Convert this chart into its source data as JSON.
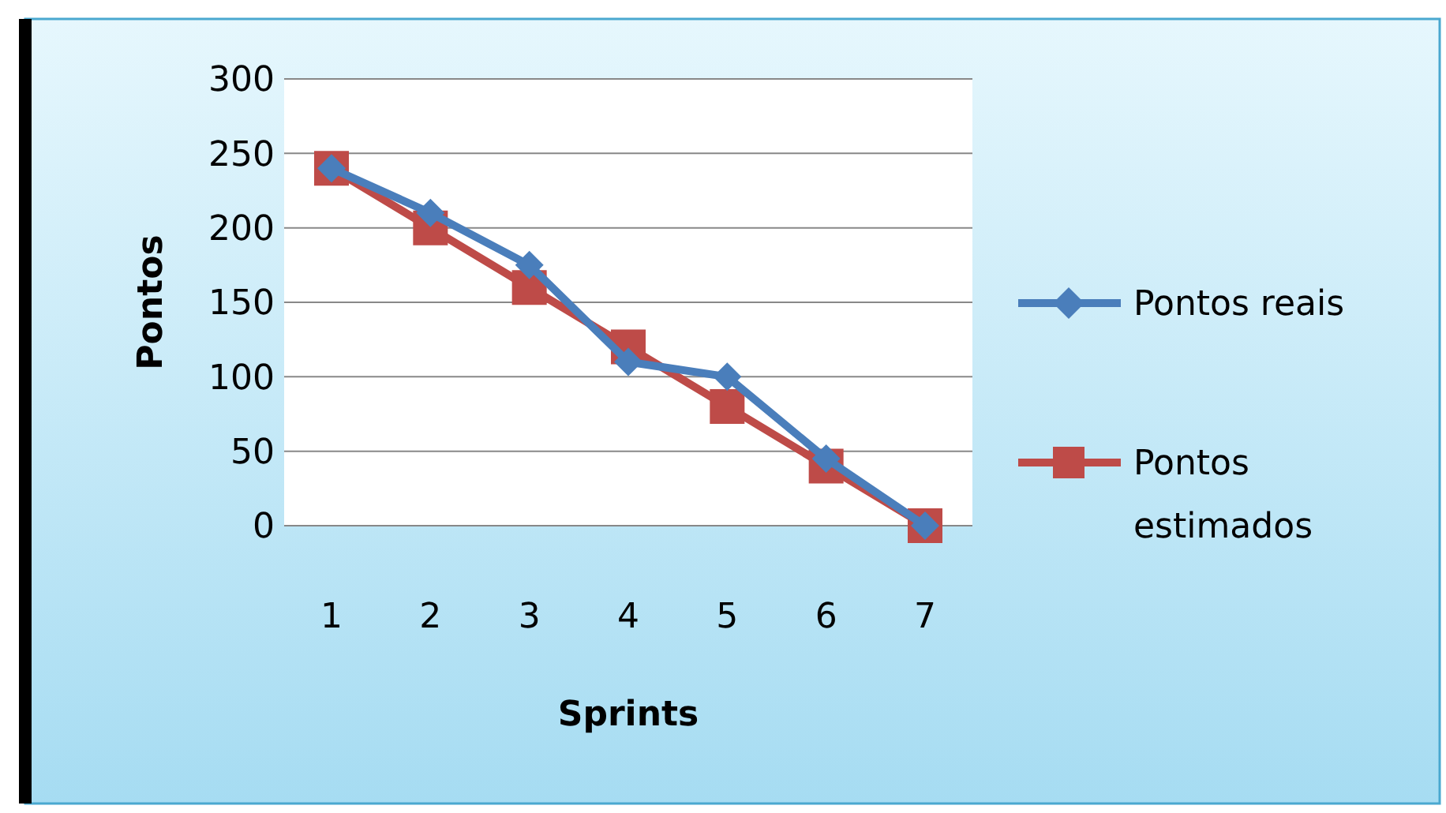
{
  "chart_data": {
    "type": "line",
    "xlabel": "Sprints",
    "ylabel": "Pontos",
    "categories": [
      "1",
      "2",
      "3",
      "4",
      "5",
      "6",
      "7"
    ],
    "series": [
      {
        "name": "Pontos reais",
        "color": "#4a7ebb",
        "marker": "diamond",
        "values": [
          240,
          210,
          175,
          110,
          100,
          45,
          0
        ]
      },
      {
        "name": "Pontos estimados",
        "color": "#be4b48",
        "marker": "square",
        "values": [
          240,
          200,
          160,
          120,
          80,
          40,
          0
        ]
      }
    ],
    "ylim": [
      0,
      300
    ],
    "yticks": [
      0,
      50,
      100,
      150,
      200,
      250,
      300
    ],
    "grid": "y",
    "legend": "right"
  }
}
